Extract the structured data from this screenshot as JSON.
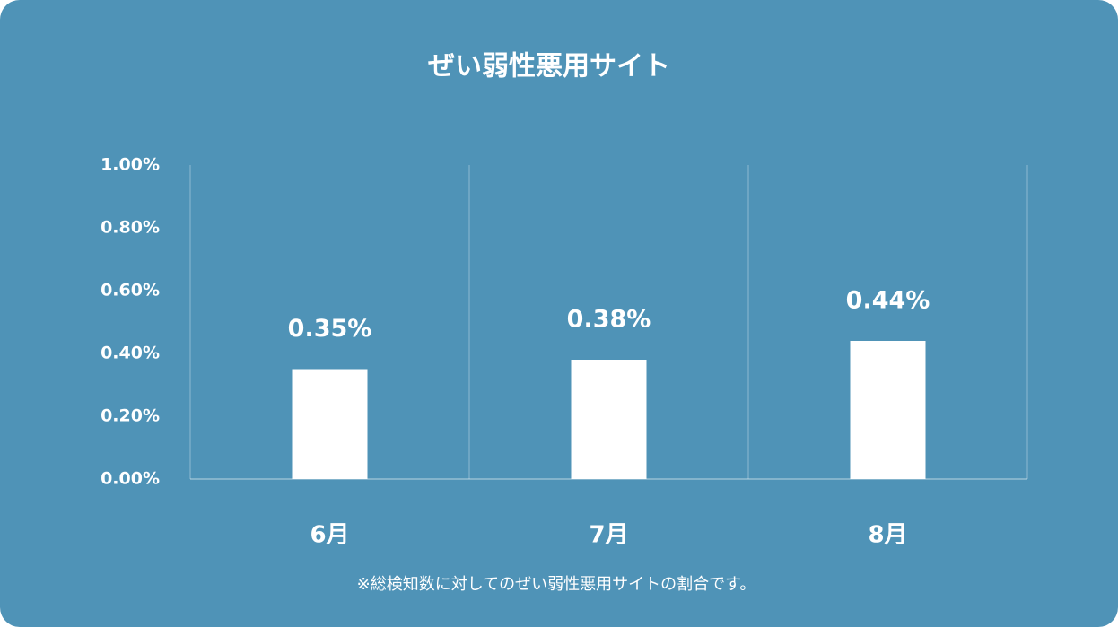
{
  "chart_data": {
    "type": "bar",
    "title": "ぜい弱性悪用サイト",
    "categories": [
      "6月",
      "7月",
      "8月"
    ],
    "values": [
      0.35,
      0.38,
      0.44
    ],
    "value_labels": [
      "0.35%",
      "0.38%",
      "0.44%"
    ],
    "color": "#ffffff",
    "ylim": [
      0,
      1
    ],
    "yticks": [
      {
        "value": 0,
        "label": "0.00%"
      },
      {
        "value": 0.2,
        "label": "0.20%"
      },
      {
        "value": 0.4,
        "label": "0.40%"
      },
      {
        "value": 0.6,
        "label": "0.60%"
      },
      {
        "value": 0.8,
        "label": "0.80%"
      },
      {
        "value": 1,
        "label": "1.00%"
      }
    ],
    "note": "※総検知数に対してのぜい弱性悪用サイトの割合です。"
  }
}
